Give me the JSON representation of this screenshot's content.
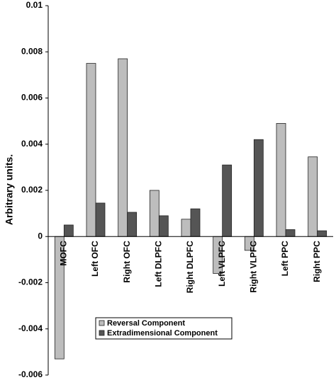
{
  "chart_data": {
    "type": "bar",
    "y_label": "Arbitrary units.",
    "categories": [
      "MOFC",
      "Left OFC",
      "Right OFC",
      "Left DLPFC",
      "Right DLPFC",
      "Left VLPFC",
      "Right VLPFC",
      "Left PPC",
      "Right PPC"
    ],
    "series": [
      {
        "name": "Reversal Component",
        "color": "#bdbdbd",
        "values": [
          -0.0053,
          0.0075,
          0.0077,
          0.002,
          0.00075,
          -0.0016,
          -0.0006,
          0.0049,
          0.00345
        ]
      },
      {
        "name": "Extradimensional Component",
        "color": "#555555",
        "values": [
          0.0005,
          0.00145,
          0.00105,
          0.0009,
          0.0012,
          0.0031,
          0.0042,
          0.0003,
          0.00025
        ]
      }
    ],
    "ylim": [
      -0.006,
      0.01
    ],
    "yticks": [
      -0.006,
      -0.004,
      -0.002,
      0,
      0.002,
      0.004,
      0.006,
      0.008,
      0.01
    ]
  }
}
